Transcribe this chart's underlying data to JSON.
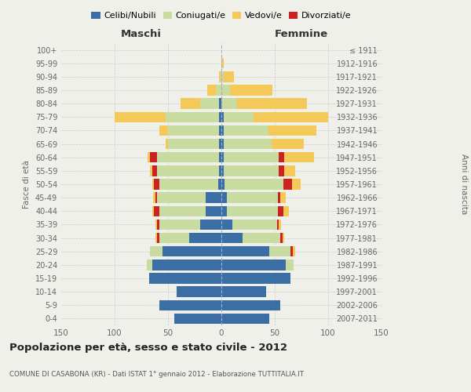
{
  "age_groups": [
    "0-4",
    "5-9",
    "10-14",
    "15-19",
    "20-24",
    "25-29",
    "30-34",
    "35-39",
    "40-44",
    "45-49",
    "50-54",
    "55-59",
    "60-64",
    "65-69",
    "70-74",
    "75-79",
    "80-84",
    "85-89",
    "90-94",
    "95-99",
    "100+"
  ],
  "birth_years": [
    "2007-2011",
    "2002-2006",
    "1997-2001",
    "1992-1996",
    "1987-1991",
    "1982-1986",
    "1977-1981",
    "1972-1976",
    "1967-1971",
    "1962-1966",
    "1957-1961",
    "1952-1956",
    "1947-1951",
    "1942-1946",
    "1937-1941",
    "1932-1936",
    "1927-1931",
    "1922-1926",
    "1917-1921",
    "1912-1916",
    "≤ 1911"
  ],
  "maschi": {
    "celibi": [
      44,
      58,
      42,
      68,
      65,
      55,
      30,
      20,
      15,
      15,
      3,
      2,
      2,
      2,
      2,
      2,
      2,
      0,
      0,
      0,
      0
    ],
    "coniugati": [
      0,
      0,
      0,
      0,
      5,
      12,
      28,
      38,
      43,
      45,
      55,
      58,
      58,
      48,
      48,
      50,
      18,
      5,
      1,
      0,
      0
    ],
    "vedovi": [
      0,
      0,
      0,
      0,
      0,
      0,
      2,
      2,
      2,
      2,
      2,
      2,
      2,
      2,
      8,
      48,
      18,
      8,
      1,
      0,
      0
    ],
    "divorziati": [
      0,
      0,
      0,
      0,
      0,
      0,
      2,
      2,
      5,
      2,
      5,
      5,
      7,
      0,
      0,
      0,
      0,
      0,
      0,
      0,
      0
    ]
  },
  "femmine": {
    "nubili": [
      45,
      55,
      42,
      65,
      60,
      45,
      20,
      10,
      5,
      5,
      3,
      2,
      2,
      2,
      2,
      2,
      0,
      0,
      0,
      0,
      0
    ],
    "coniugate": [
      0,
      0,
      0,
      0,
      8,
      20,
      35,
      42,
      48,
      48,
      55,
      52,
      52,
      45,
      42,
      28,
      15,
      8,
      2,
      0,
      0
    ],
    "vedove": [
      0,
      0,
      0,
      0,
      0,
      2,
      2,
      2,
      5,
      5,
      8,
      10,
      28,
      30,
      45,
      70,
      65,
      40,
      10,
      2,
      0
    ],
    "divorziate": [
      0,
      0,
      0,
      0,
      0,
      2,
      2,
      2,
      5,
      2,
      8,
      5,
      5,
      0,
      0,
      0,
      0,
      0,
      0,
      0,
      0
    ]
  },
  "colors": {
    "celibi_nubili": "#3a6ea5",
    "coniugati": "#c8dba0",
    "vedovi": "#f5c85a",
    "divorziati": "#cc2222"
  },
  "xlim": 150,
  "title": "Popolazione per età, sesso e stato civile - 2012",
  "subtitle": "COMUNE DI CASABONA (KR) - Dati ISTAT 1° gennaio 2012 - Elaborazione TUTTITALIA.IT",
  "ylabel_left": "Fasce di età",
  "ylabel_right": "Anni di nascita",
  "xlabel_left": "Maschi",
  "xlabel_right": "Femmine",
  "legend_labels": [
    "Celibi/Nubili",
    "Coniugati/e",
    "Vedovi/e",
    "Divorziati/e"
  ],
  "bg_color": "#f0f0eb"
}
